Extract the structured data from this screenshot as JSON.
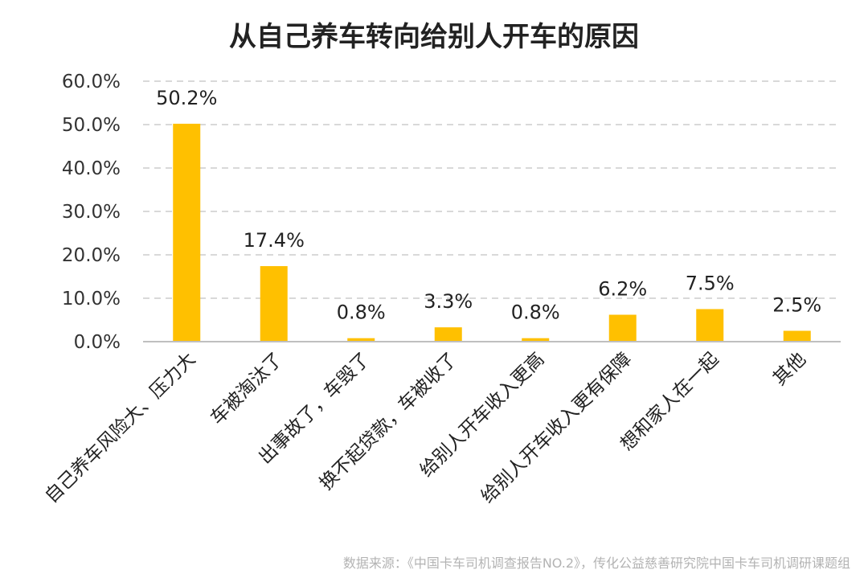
{
  "title": "从自己养车转向给别人开车的原因",
  "source": "数据来源：《中国卡车司机调查报告NO.2》，传化公益慈善研究院中国卡车司机调研课题组",
  "chart_data": {
    "type": "bar",
    "title": "从自己养车转向给别人开车的原因",
    "categories": [
      "自己养车风险大、压力大",
      "车被淘汰了",
      "出事故了，车毁了",
      "换不起贷款，车被收了",
      "给别人开车收入更高",
      "给别人开车收入更有保障",
      "想和家人在一起",
      "其他"
    ],
    "values": [
      50.2,
      17.4,
      0.8,
      3.3,
      0.8,
      6.2,
      7.5,
      2.5
    ],
    "data_labels": [
      "50.2%",
      "17.4%",
      "0.8%",
      "3.3%",
      "0.8%",
      "6.2%",
      "7.5%",
      "2.5%"
    ],
    "yticks": [
      "0.0%",
      "10.0%",
      "20.0%",
      "30.0%",
      "40.0%",
      "50.0%",
      "60.0%"
    ],
    "ylim": [
      0,
      60
    ],
    "grid": true,
    "bar_color": "#FFC000",
    "grid_color": "#d9d9d9"
  }
}
